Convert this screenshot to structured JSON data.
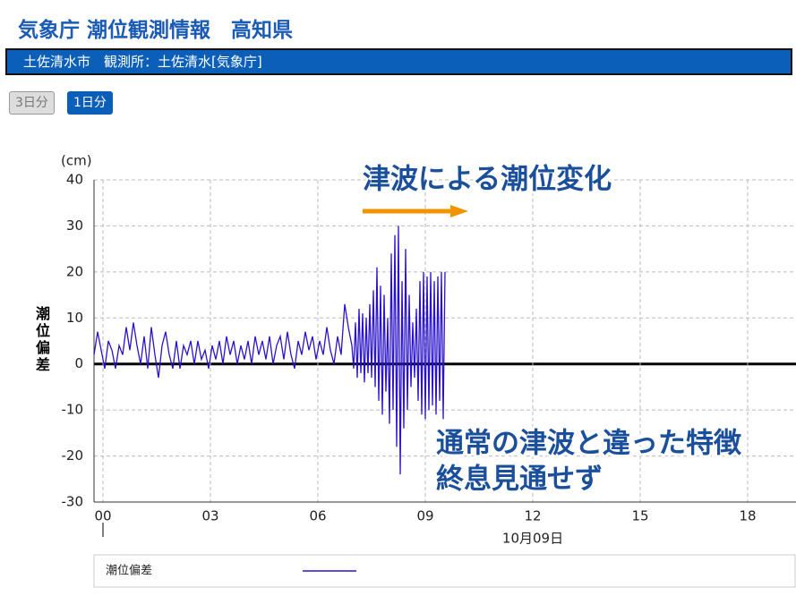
{
  "header": {
    "title": "気象庁 潮位観測情報　高知県",
    "station": "土佐清水市　観測所：土佐清水[気象庁]"
  },
  "buttons": [
    "3日分",
    "1日分"
  ],
  "chart_data": {
    "type": "line",
    "y_unit": "(cm)",
    "ylabel": "潮位偏差",
    "xlabel": "10月09日",
    "annotations": [
      "津波による潮位変化",
      "通常の津波と違った特徴",
      "終息見通せず"
    ],
    "xlim": [
      -0.25,
      19.35
    ],
    "ylim": [
      -30,
      40
    ],
    "xticks": [
      {
        "value": 0,
        "label": "00"
      },
      {
        "value": 3,
        "label": "03"
      },
      {
        "value": 6,
        "label": "06"
      },
      {
        "value": 9,
        "label": "09"
      },
      12,
      15,
      18
    ],
    "yticks": [
      -30,
      -20,
      -10,
      0,
      10,
      20,
      30,
      40
    ],
    "grid": true,
    "x": [
      -0.25,
      -0.15,
      -0.05,
      0.05,
      0.15,
      0.25,
      0.35,
      0.45,
      0.55,
      0.65,
      0.75,
      0.85,
      0.95,
      1.05,
      1.15,
      1.25,
      1.35,
      1.45,
      1.55,
      1.65,
      1.75,
      1.85,
      1.95,
      2.05,
      2.15,
      2.25,
      2.35,
      2.45,
      2.55,
      2.65,
      2.75,
      2.85,
      2.95,
      3.05,
      3.15,
      3.25,
      3.35,
      3.45,
      3.55,
      3.65,
      3.75,
      3.85,
      3.95,
      4.05,
      4.15,
      4.25,
      4.35,
      4.45,
      4.55,
      4.65,
      4.75,
      4.85,
      4.95,
      5.05,
      5.15,
      5.25,
      5.35,
      5.45,
      5.55,
      5.65,
      5.75,
      5.85,
      5.95,
      6.05,
      6.15,
      6.25,
      6.35,
      6.45,
      6.55,
      6.65,
      6.75,
      6.85,
      6.95,
      7.0,
      7.05,
      7.1,
      7.15,
      7.2,
      7.25,
      7.3,
      7.35,
      7.4,
      7.45,
      7.5,
      7.55,
      7.6,
      7.65,
      7.7,
      7.75,
      7.8,
      7.85,
      7.9,
      7.95,
      8.0,
      8.05,
      8.1,
      8.15,
      8.2,
      8.25,
      8.3,
      8.35,
      8.4,
      8.45,
      8.5,
      8.55,
      8.6,
      8.65,
      8.7,
      8.75,
      8.8,
      8.85,
      8.9,
      8.95,
      9.0,
      9.05,
      9.1,
      9.15,
      9.2,
      9.25,
      9.3,
      9.35,
      9.4,
      9.45,
      9.5,
      9.55
    ],
    "series": [
      {
        "name": "潮位偏差",
        "color": "#2a12c8",
        "values": [
          2,
          7,
          3,
          -1,
          5,
          3,
          -1,
          4,
          2,
          8,
          3,
          9,
          4,
          0,
          6,
          -1,
          8,
          2,
          -3,
          4,
          7,
          2,
          -1,
          5,
          -1,
          4,
          2,
          5,
          0,
          5,
          1,
          3,
          -1,
          4,
          1,
          5,
          0,
          6,
          2,
          5,
          0,
          4,
          1,
          5,
          0,
          6,
          2,
          5,
          1,
          6,
          0,
          4,
          6,
          1,
          7,
          2,
          -1,
          5,
          2,
          7,
          3,
          6,
          1,
          5,
          2,
          8,
          3,
          0,
          6,
          2,
          13,
          8,
          4,
          -1,
          9,
          -3,
          12,
          -2,
          11,
          -4,
          10,
          -2,
          13,
          -3,
          16,
          -5,
          21,
          -8,
          17,
          -11,
          15,
          -6,
          10,
          -13,
          24,
          -10,
          28,
          -18,
          30,
          -24,
          18,
          -14,
          25,
          -10,
          15,
          -5,
          9,
          -3,
          12,
          -8,
          18,
          -11,
          20,
          -12,
          19,
          -10,
          20,
          -9,
          18,
          -11,
          19,
          -8,
          20,
          -12,
          20
        ]
      }
    ]
  }
}
